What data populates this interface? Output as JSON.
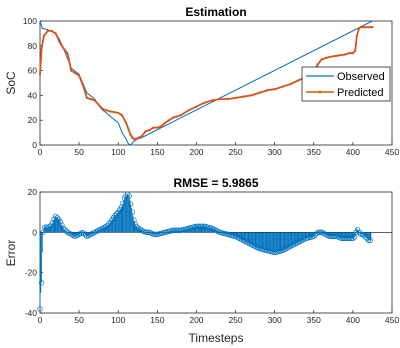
{
  "chart_data": [
    {
      "type": "line",
      "title": "Estimation",
      "xlabel": "",
      "ylabel": "SoC",
      "xlim": [
        0,
        450
      ],
      "ylim": [
        0,
        100
      ],
      "xticks": [
        0,
        50,
        100,
        150,
        200,
        250,
        300,
        350,
        400,
        450
      ],
      "yticks": [
        0,
        20,
        40,
        60,
        80,
        100
      ],
      "legend": "right",
      "series": [
        {
          "name": "Observed",
          "color": "#0072BD",
          "x": [
            0,
            3,
            10,
            20,
            25,
            30,
            40,
            50,
            60,
            70,
            75,
            80,
            85,
            90,
            100,
            105,
            110,
            113,
            116,
            120,
            125,
            130,
            425
          ],
          "y": [
            100,
            94,
            93,
            90,
            85,
            78,
            62,
            57,
            42,
            37,
            32,
            28,
            26,
            23,
            18,
            10,
            5,
            1,
            0,
            3,
            5,
            6,
            100
          ]
        },
        {
          "name": "Predicted",
          "color": "#D95319",
          "x": [
            0,
            2,
            5,
            10,
            15,
            20,
            25,
            30,
            35,
            40,
            50,
            55,
            60,
            65,
            70,
            80,
            85,
            90,
            100,
            105,
            110,
            113,
            116,
            118,
            120,
            123,
            126,
            130,
            135,
            140,
            145,
            150,
            155,
            160,
            165,
            170,
            175,
            180,
            190,
            200,
            210,
            220,
            230,
            240,
            250,
            260,
            270,
            280,
            290,
            300,
            310,
            320,
            330,
            340,
            350,
            355,
            360,
            370,
            380,
            390,
            395,
            400,
            403,
            405,
            408,
            410,
            415,
            420,
            425
          ],
          "y": [
            57,
            78,
            88,
            92,
            92,
            90,
            83,
            78,
            74,
            60,
            56,
            48,
            38,
            37,
            36,
            29,
            28,
            27,
            26,
            24,
            18,
            13,
            8,
            6,
            5,
            5,
            6,
            7,
            11,
            12,
            14,
            14,
            15,
            18,
            20,
            22,
            23,
            24,
            28,
            31,
            34,
            36,
            37,
            37,
            38,
            39,
            40,
            42,
            44,
            45,
            47,
            49,
            52,
            55,
            58,
            65,
            69,
            71,
            72,
            73,
            74,
            74,
            76,
            88,
            94,
            95,
            95,
            95,
            95
          ]
        }
      ]
    },
    {
      "type": "stem",
      "title": "RMSE = 5.9865",
      "xlabel": "Timesteps",
      "ylabel": "Error",
      "xlim": [
        0,
        450
      ],
      "ylim": [
        -40,
        20
      ],
      "xticks": [
        0,
        50,
        100,
        150,
        200,
        250,
        300,
        350,
        400,
        450
      ],
      "yticks": [
        -40,
        -20,
        0,
        20
      ],
      "color": "#0072BD",
      "x": [
        0,
        1,
        2,
        3,
        4,
        5,
        7,
        10,
        15,
        20,
        25,
        30,
        35,
        40,
        45,
        50,
        55,
        60,
        65,
        70,
        75,
        80,
        85,
        90,
        95,
        100,
        105,
        108,
        110,
        112,
        114,
        116,
        118,
        120,
        123,
        126,
        130,
        135,
        140,
        145,
        150,
        160,
        170,
        180,
        190,
        200,
        210,
        220,
        230,
        240,
        250,
        260,
        270,
        280,
        290,
        300,
        310,
        320,
        330,
        340,
        350,
        355,
        360,
        365,
        370,
        375,
        380,
        385,
        390,
        395,
        400,
        403,
        405,
        408,
        410,
        413,
        415,
        418,
        420,
        423
      ],
      "y": [
        -38,
        -30,
        -25,
        -10,
        0,
        2,
        3,
        2,
        4,
        8,
        6,
        2,
        0,
        -1,
        -2,
        -1,
        0,
        -2,
        -1,
        0,
        1,
        2,
        3,
        5,
        8,
        10,
        13,
        17,
        18,
        19,
        18,
        14,
        10,
        6,
        3,
        2,
        1,
        0,
        0,
        -1,
        -1,
        0,
        1,
        1,
        2,
        3,
        3,
        2,
        0,
        -1,
        -2,
        -4,
        -6,
        -8,
        -9,
        -10,
        -9,
        -7,
        -5,
        -3,
        -2,
        0,
        0,
        -1,
        -2,
        -2,
        -2,
        -3,
        -3,
        -3,
        -3,
        -2,
        2,
        0,
        -1,
        -1,
        -2,
        -3,
        -4,
        -4
      ]
    }
  ]
}
